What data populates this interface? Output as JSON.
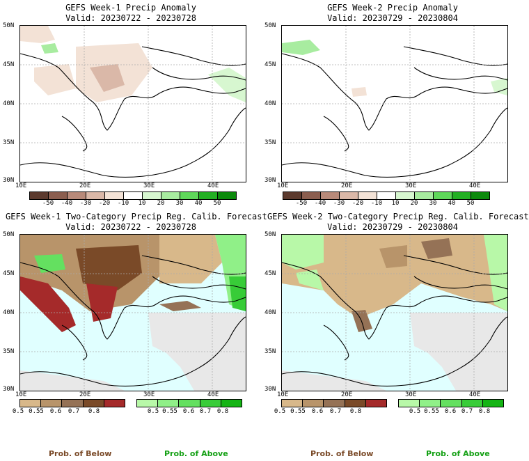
{
  "panels": [
    {
      "title": "GEFS Week-1 Precip Anomaly",
      "valid": "Valid: 20230722 - 20230728"
    },
    {
      "title": "GEFS Week-2 Precip Anomaly",
      "valid": "Valid: 20230729 - 20230804"
    },
    {
      "title": "GEFS Week-1 Two-Category Precip Reg. Calib. Forecast",
      "valid": "Valid: 20230722 - 20230728"
    },
    {
      "title": "GEFS Week-2 Two-Category Precip Reg. Calib. Forecast",
      "valid": "Valid: 20230729 - 20230804"
    }
  ],
  "axes": {
    "lat_labels": [
      "50N",
      "45N",
      "40N",
      "35N",
      "30N"
    ],
    "lon_labels": [
      "10E",
      "20E",
      "30E",
      "40E"
    ]
  },
  "anomaly_colorbar": {
    "labels": [
      "-50",
      "-40",
      "-30",
      "-20",
      "-10",
      "10",
      "20",
      "30",
      "40",
      "50"
    ],
    "colors": [
      "#5c3a2e",
      "#8b5e4f",
      "#b88a7a",
      "#dab8a8",
      "#f3e2d6",
      "#ffffff",
      "#d7f7d0",
      "#a8eca0",
      "#5fd85a",
      "#23b023",
      "#0c8a0c"
    ]
  },
  "prob_below_colorbar": {
    "labels": [
      "0.5",
      "0.55",
      "0.6",
      "0.7",
      "0.8"
    ],
    "colors": [
      "#d8b88a",
      "#b8946a",
      "#957256",
      "#7a4a28",
      "#a52a2a"
    ]
  },
  "prob_above_colorbar": {
    "labels": [
      "0.5",
      "0.55",
      "0.6",
      "0.7",
      "0.8"
    ],
    "colors": [
      "#b8f8a8",
      "#90f088",
      "#64e060",
      "#38cc38",
      "#14b414"
    ]
  },
  "footer": {
    "below": "Prob. of Below",
    "above": "Prob. of Above"
  },
  "colors": {
    "sea": "#e0ffff",
    "nodata": "#e8e8e8",
    "below_label": "#7a4a28",
    "above_label": "#14a014"
  }
}
